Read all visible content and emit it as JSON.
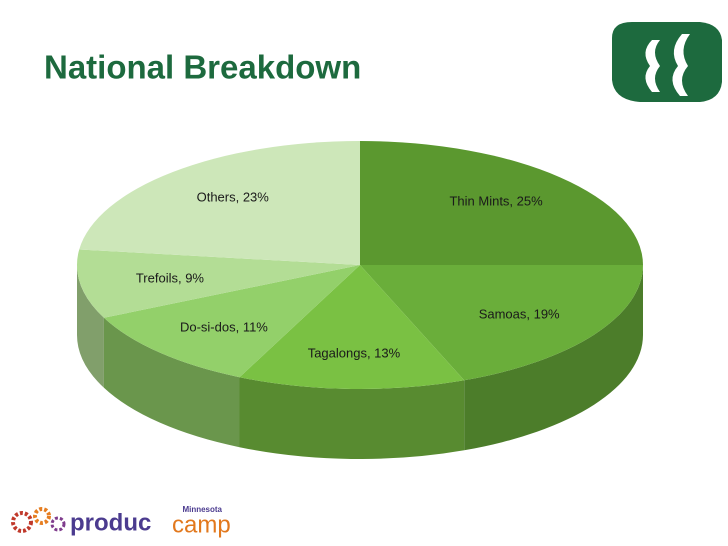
{
  "chart_data": {
    "type": "pie3d",
    "title": "National Breakdown",
    "values": [
      25,
      19,
      13,
      11,
      9,
      23
    ],
    "value_labels": [
      "Thin Mints, 25%",
      "Samoas, 19%",
      "Tagalongs, 13%",
      "Do-si-dos, 11%",
      "Trefoils, 9%",
      "Others, 23%"
    ],
    "colors": [
      "#5b982f",
      "#6aae3a",
      "#7ac143",
      "#93d06a",
      "#b3dd95",
      "#cde7b9"
    ]
  },
  "footer": {
    "logo_word_1": "produc",
    "logo_word_2": "camp",
    "logo_region": "Minnesota"
  }
}
